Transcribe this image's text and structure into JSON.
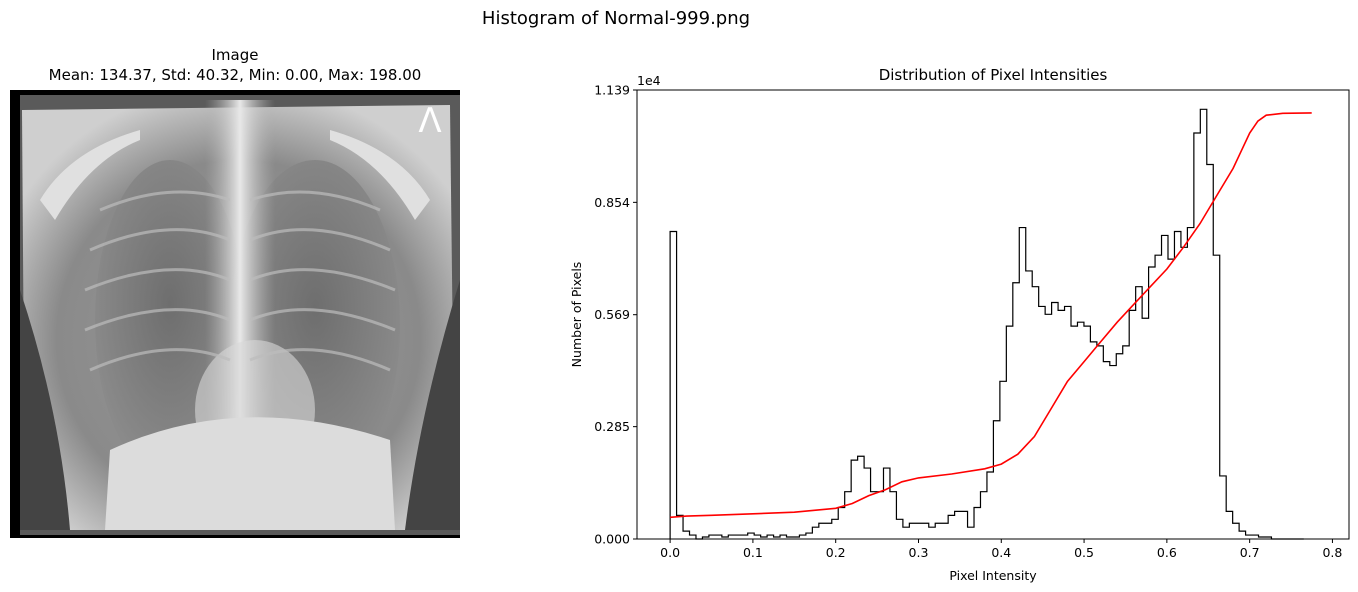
{
  "figure": {
    "suptitle": "Histogram of Normal-999.png"
  },
  "image_panel": {
    "title": "Image",
    "stats": "Mean: 134.37, Std: 40.32, Min: 0.00, Max: 198.00",
    "marker_letter": "Λ"
  },
  "chart_data": {
    "type": "histogram",
    "title": "Distribution of Pixel Intensities",
    "xlabel": "Pixel Intensity",
    "ylabel": "Number of Pixels",
    "offset_text": "1e4",
    "xlim": [
      -0.04,
      0.82
    ],
    "ylim": [
      0,
      1.139
    ],
    "x_ticks": [
      0.0,
      0.1,
      0.2,
      0.3,
      0.4,
      0.5,
      0.6,
      0.7,
      0.8
    ],
    "x_tick_labels": [
      "0.0",
      "0.1",
      "0.2",
      "0.3",
      "0.4",
      "0.5",
      "0.6",
      "0.7",
      "0.8"
    ],
    "y_ticks": [
      0.0,
      0.285,
      0.569,
      0.854,
      1.139
    ],
    "y_tick_labels": [
      "0.000",
      "0.285",
      "0.569",
      "0.854",
      "1.139"
    ],
    "histogram": {
      "color": "#000000",
      "bin_start": 0.0,
      "bin_width": 0.00781,
      "counts": [
        0.78,
        0.06,
        0.02,
        0.01,
        0.0,
        0.005,
        0.01,
        0.01,
        0.005,
        0.01,
        0.01,
        0.01,
        0.015,
        0.01,
        0.005,
        0.01,
        0.005,
        0.01,
        0.005,
        0.005,
        0.01,
        0.015,
        0.03,
        0.04,
        0.04,
        0.05,
        0.08,
        0.12,
        0.2,
        0.21,
        0.18,
        0.12,
        0.12,
        0.18,
        0.12,
        0.05,
        0.03,
        0.04,
        0.04,
        0.04,
        0.03,
        0.04,
        0.04,
        0.06,
        0.07,
        0.07,
        0.03,
        0.08,
        0.12,
        0.17,
        0.3,
        0.4,
        0.54,
        0.65,
        0.79,
        0.68,
        0.64,
        0.59,
        0.57,
        0.6,
        0.58,
        0.59,
        0.54,
        0.55,
        0.54,
        0.5,
        0.49,
        0.45,
        0.44,
        0.47,
        0.49,
        0.58,
        0.64,
        0.56,
        0.69,
        0.72,
        0.77,
        0.71,
        0.78,
        0.74,
        0.79,
        1.03,
        1.09,
        0.95,
        0.72,
        0.16,
        0.07,
        0.04,
        0.02,
        0.01,
        0.01,
        0.005,
        0.005,
        0.0,
        0.0,
        0.0,
        0.0,
        0.0
      ],
      "baseline_bins": 1
    },
    "cdf_line": {
      "color": "#ff0000",
      "x": [
        0.0,
        0.02,
        0.05,
        0.1,
        0.15,
        0.2,
        0.22,
        0.24,
        0.26,
        0.28,
        0.3,
        0.34,
        0.38,
        0.4,
        0.42,
        0.44,
        0.46,
        0.48,
        0.5,
        0.52,
        0.54,
        0.56,
        0.58,
        0.6,
        0.62,
        0.64,
        0.66,
        0.68,
        0.69,
        0.7,
        0.71,
        0.72,
        0.74,
        0.775
      ],
      "y": [
        0.055,
        0.058,
        0.06,
        0.064,
        0.068,
        0.078,
        0.09,
        0.11,
        0.125,
        0.145,
        0.155,
        0.165,
        0.178,
        0.19,
        0.215,
        0.26,
        0.33,
        0.4,
        0.45,
        0.5,
        0.55,
        0.595,
        0.64,
        0.685,
        0.74,
        0.8,
        0.87,
        0.94,
        0.985,
        1.03,
        1.06,
        1.075,
        1.08,
        1.081
      ]
    }
  }
}
